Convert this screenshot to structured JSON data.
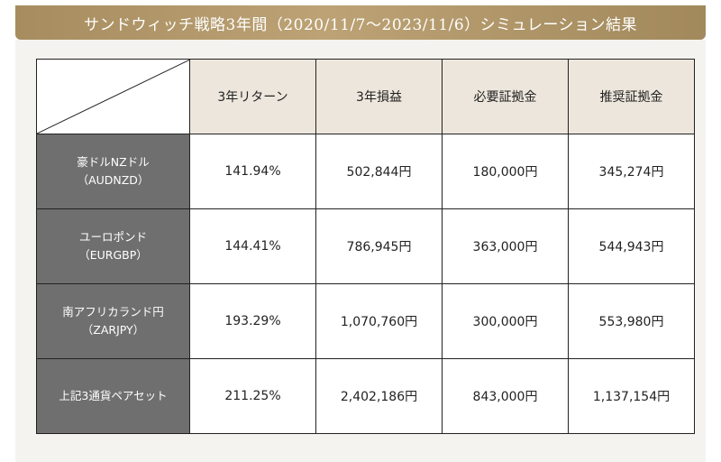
{
  "header": {
    "title": "サンドウィッチ戦略3年間（2020/11/7〜2023/11/6）シミュレーション結果"
  },
  "table": {
    "columns": [
      "3年リターン",
      "3年損益",
      "必要証拠金",
      "推奨証拠金"
    ],
    "rows": [
      {
        "label": [
          "豪ドルNZドル",
          "（AUDNZD）"
        ],
        "cells": [
          "141.94%",
          "502,844円",
          "180,000円",
          "345,274円"
        ]
      },
      {
        "label": [
          "ユーロポンド",
          "（EURGBP）"
        ],
        "cells": [
          "144.41%",
          "786,945円",
          "363,000円",
          "544,943円"
        ]
      },
      {
        "label": [
          "南アフリカランド円",
          "（ZARJPY）"
        ],
        "cells": [
          "193.29%",
          "1,070,760円",
          "300,000円",
          "553,980円"
        ]
      },
      {
        "label": [
          "上記3通貨ペアセット"
        ],
        "cells": [
          "211.25%",
          "2,402,186円",
          "843,000円",
          "1,137,154円"
        ]
      }
    ]
  }
}
